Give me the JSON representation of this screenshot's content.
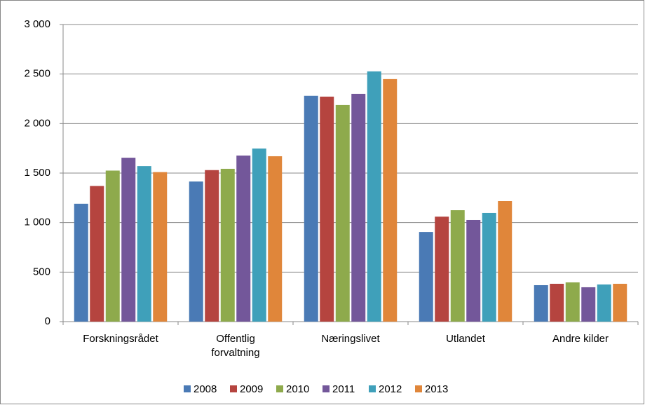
{
  "chart_data": {
    "type": "bar",
    "categories": [
      "Forskningsrådet",
      "Offentlig forvaltning",
      "Næringslivet",
      "Utlandet",
      "Andre kilder"
    ],
    "series": [
      {
        "name": "2008",
        "color": "#4a7ab5",
        "values": [
          1190,
          1415,
          2280,
          905,
          368
        ]
      },
      {
        "name": "2009",
        "color": "#b5443f",
        "values": [
          1370,
          1530,
          2272,
          1060,
          382
        ]
      },
      {
        "name": "2010",
        "color": "#8eaa4c",
        "values": [
          1525,
          1543,
          2187,
          1125,
          396
        ]
      },
      {
        "name": "2011",
        "color": "#73579a",
        "values": [
          1655,
          1677,
          2300,
          1026,
          347
        ]
      },
      {
        "name": "2012",
        "color": "#3fa0ba",
        "values": [
          1570,
          1748,
          2527,
          1097,
          375
        ]
      },
      {
        "name": "2013",
        "color": "#e0863a",
        "values": [
          1510,
          1670,
          2449,
          1217,
          382
        ]
      }
    ],
    "ylim": [
      0,
      3000
    ],
    "yticks": [
      0,
      500,
      {
        "value": 1000,
        "label": "1 000"
      },
      {
        "value": 1500,
        "label": "1 500"
      },
      {
        "value": 2000,
        "label": "2 000"
      },
      {
        "value": 2500,
        "label": "2 500"
      },
      {
        "value": 3000,
        "label": "3 000"
      }
    ],
    "grid": true,
    "legend": "bottom"
  }
}
